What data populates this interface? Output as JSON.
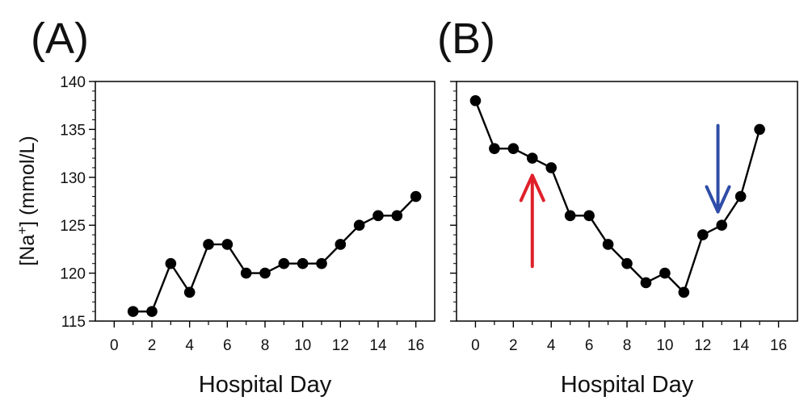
{
  "chart_data": [
    {
      "type": "line",
      "panel_label": "(A)",
      "xlabel": "Hospital Day",
      "ylabel": "[Na+] (mmol/L)",
      "ylabel_parts": {
        "prefix": "[Na",
        "superscript": "+",
        "suffix": "] (mmol/L)"
      },
      "xlim": [
        -1,
        17
      ],
      "ylim": [
        115,
        140
      ],
      "xticks": [
        0,
        2,
        4,
        6,
        8,
        10,
        12,
        14,
        16
      ],
      "xtick_labels": [
        "0",
        "2",
        "4",
        "6",
        "8",
        "10",
        "12",
        "14",
        "16"
      ],
      "yticks": [
        115,
        120,
        125,
        130,
        135,
        140
      ],
      "ytick_labels": [
        "115",
        "120",
        "125",
        "130",
        "135",
        "140"
      ],
      "grid": false,
      "series": [
        {
          "name": "[Na+]",
          "x": [
            1,
            2,
            3,
            4,
            5,
            6,
            7,
            8,
            9,
            10,
            11,
            12,
            13,
            14,
            15,
            16
          ],
          "values": [
            116,
            116,
            121,
            118,
            123,
            123,
            120,
            120,
            121,
            121,
            121,
            123,
            125,
            126,
            126,
            128
          ],
          "color": "#000000"
        }
      ],
      "annotations": []
    },
    {
      "type": "line",
      "panel_label": "(B)",
      "xlabel": "Hospital Day",
      "xlim": [
        -1,
        17
      ],
      "ylim": [
        115,
        140
      ],
      "xticks": [
        0,
        2,
        4,
        6,
        8,
        10,
        12,
        14,
        16
      ],
      "xtick_labels": [
        "0",
        "2",
        "4",
        "6",
        "8",
        "10",
        "12",
        "14",
        "16"
      ],
      "yticks": [
        115,
        120,
        125,
        130,
        135,
        140
      ],
      "grid": false,
      "series": [
        {
          "name": "[Na+]",
          "x": [
            0,
            1,
            2,
            3,
            4,
            5,
            6,
            7,
            8,
            9,
            10,
            11,
            12,
            13,
            14,
            15
          ],
          "values": [
            138,
            133,
            133,
            132,
            131,
            126,
            126,
            123,
            121,
            119,
            120,
            118,
            124,
            125,
            128,
            135
          ],
          "color": "#000000"
        }
      ],
      "annotations": [
        {
          "type": "arrow",
          "direction": "up",
          "color": "#e0202a",
          "x": 3,
          "y_tail": 120.7,
          "y_head": 130.2
        },
        {
          "type": "arrow",
          "direction": "down",
          "color": "#2f4da8",
          "x": 12.8,
          "y_tail": 135.4,
          "y_head": 126.4
        }
      ]
    }
  ]
}
